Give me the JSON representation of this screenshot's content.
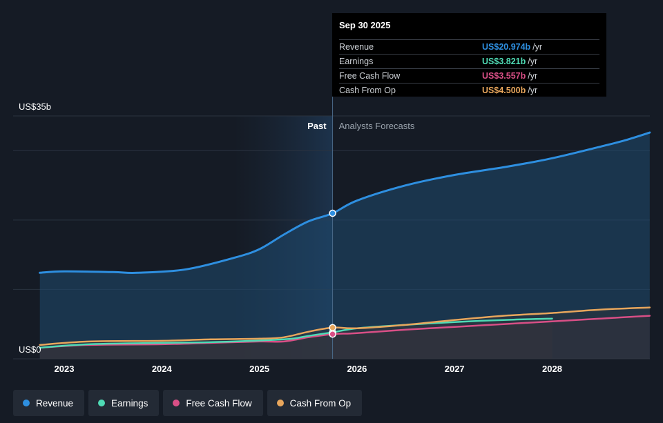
{
  "chart_data": {
    "type": "line",
    "y_axis": {
      "min_label": "US$0",
      "max_label": "US$35b",
      "ylim": [
        0,
        35
      ]
    },
    "x_axis": {
      "ticks": [
        "2023",
        "2024",
        "2025",
        "2026",
        "2027",
        "2028"
      ]
    },
    "divider": {
      "past_label": "Past",
      "forecast_label": "Analysts Forecasts",
      "date": 2025.75
    },
    "series": [
      {
        "name": "Revenue",
        "color": "#2e8fe0",
        "points": [
          [
            2022.75,
            12.4
          ],
          [
            2023.0,
            12.6
          ],
          [
            2023.5,
            12.5
          ],
          [
            2023.75,
            12.4
          ],
          [
            2024.25,
            12.9
          ],
          [
            2024.75,
            14.6
          ],
          [
            2025.0,
            15.8
          ],
          [
            2025.25,
            17.9
          ],
          [
            2025.5,
            19.8
          ],
          [
            2025.75,
            20.974
          ],
          [
            2026.0,
            22.8
          ],
          [
            2026.5,
            25.0
          ],
          [
            2027.0,
            26.5
          ],
          [
            2027.5,
            27.6
          ],
          [
            2028.0,
            28.9
          ],
          [
            2028.5,
            30.6
          ],
          [
            2028.75,
            31.5
          ],
          [
            2029.0,
            32.6
          ]
        ]
      },
      {
        "name": "Earnings",
        "color": "#4fdbb5",
        "points": [
          [
            2022.75,
            1.6
          ],
          [
            2023.25,
            2.1
          ],
          [
            2024.0,
            2.3
          ],
          [
            2024.5,
            2.4
          ],
          [
            2025.25,
            2.8
          ],
          [
            2025.5,
            3.3
          ],
          [
            2025.75,
            3.821
          ],
          [
            2026.0,
            4.4
          ],
          [
            2026.5,
            4.9
          ],
          [
            2027.0,
            5.3
          ],
          [
            2027.5,
            5.6
          ],
          [
            2028.0,
            5.8
          ]
        ]
      },
      {
        "name": "Free Cash Flow",
        "color": "#d94f86",
        "points": [
          [
            2022.75,
            1.6
          ],
          [
            2023.25,
            2.0
          ],
          [
            2024.0,
            2.1
          ],
          [
            2024.5,
            2.3
          ],
          [
            2025.0,
            2.5
          ],
          [
            2025.25,
            2.5
          ],
          [
            2025.5,
            3.1
          ],
          [
            2025.75,
            3.557
          ],
          [
            2026.0,
            3.7
          ],
          [
            2026.5,
            4.2
          ],
          [
            2027.0,
            4.6
          ],
          [
            2027.5,
            5.0
          ],
          [
            2028.0,
            5.4
          ],
          [
            2028.5,
            5.8
          ],
          [
            2029.0,
            6.2
          ]
        ]
      },
      {
        "name": "Cash From Op",
        "color": "#e8a65c",
        "points": [
          [
            2022.75,
            2.0
          ],
          [
            2023.25,
            2.5
          ],
          [
            2024.0,
            2.6
          ],
          [
            2024.5,
            2.8
          ],
          [
            2025.0,
            2.9
          ],
          [
            2025.25,
            3.1
          ],
          [
            2025.5,
            3.9
          ],
          [
            2025.75,
            4.5
          ],
          [
            2026.0,
            4.4
          ],
          [
            2026.5,
            4.9
          ],
          [
            2027.0,
            5.6
          ],
          [
            2027.5,
            6.2
          ],
          [
            2028.0,
            6.6
          ],
          [
            2028.5,
            7.1
          ],
          [
            2029.0,
            7.4
          ]
        ]
      }
    ]
  },
  "tooltip": {
    "date": "Sep 30 2025",
    "rows": [
      {
        "label": "Revenue",
        "value": "US$20.974b",
        "unit": "/yr",
        "color": "#2e8fe0"
      },
      {
        "label": "Earnings",
        "value": "US$3.821b",
        "unit": "/yr",
        "color": "#4fdbb5"
      },
      {
        "label": "Free Cash Flow",
        "value": "US$3.557b",
        "unit": "/yr",
        "color": "#d94f86"
      },
      {
        "label": "Cash From Op",
        "value": "US$4.500b",
        "unit": "/yr",
        "color": "#e8a65c"
      }
    ]
  },
  "legend": [
    {
      "label": "Revenue",
      "color": "#2e8fe0"
    },
    {
      "label": "Earnings",
      "color": "#4fdbb5"
    },
    {
      "label": "Free Cash Flow",
      "color": "#d94f86"
    },
    {
      "label": "Cash From Op",
      "color": "#e8a65c"
    }
  ]
}
